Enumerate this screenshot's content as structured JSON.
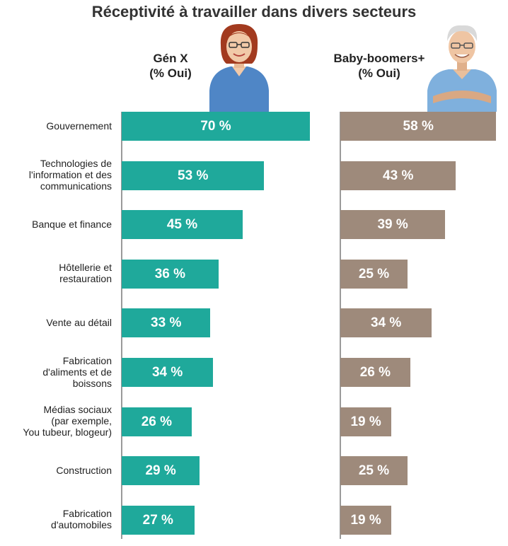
{
  "colors": {
    "genx": "#1fa99b",
    "boomers": "#9e8a7b"
  },
  "chart_data": {
    "type": "bar",
    "orientation": "horizontal",
    "title": "Réceptivité à travailler dans divers secteurs",
    "categories": [
      [
        "Gouvernement"
      ],
      [
        "Technologies de",
        "l'information et des",
        "communications"
      ],
      [
        "Banque et finance"
      ],
      [
        "Hôtellerie et",
        "restauration"
      ],
      [
        "Vente au détail"
      ],
      [
        "Fabrication",
        "d'aliments et de",
        "boissons"
      ],
      [
        "Médias sociaux",
        "(par exemple,",
        "You tubeur, blogeur)"
      ],
      [
        "Construction"
      ],
      [
        "Fabrication",
        "d'automobiles"
      ]
    ],
    "series": [
      {
        "name_lines": [
          "Gén X",
          "(% Oui)"
        ],
        "values": [
          70,
          53,
          45,
          36,
          33,
          34,
          26,
          29,
          27
        ],
        "labels": [
          "70 %",
          "53 %",
          "45 %",
          "36 %",
          "33 %",
          "34 %",
          "26 %",
          "29 %",
          "27 %"
        ]
      },
      {
        "name_lines": [
          "Baby-boomers+",
          "(% Oui)"
        ],
        "values": [
          58,
          43,
          39,
          25,
          34,
          26,
          19,
          25,
          19
        ],
        "labels": [
          "58 %",
          "43 %",
          "39 %",
          "25 %",
          "34 %",
          "26 %",
          "19 %",
          "25 %",
          "19 %"
        ]
      }
    ],
    "xlim": [
      0,
      70
    ]
  }
}
